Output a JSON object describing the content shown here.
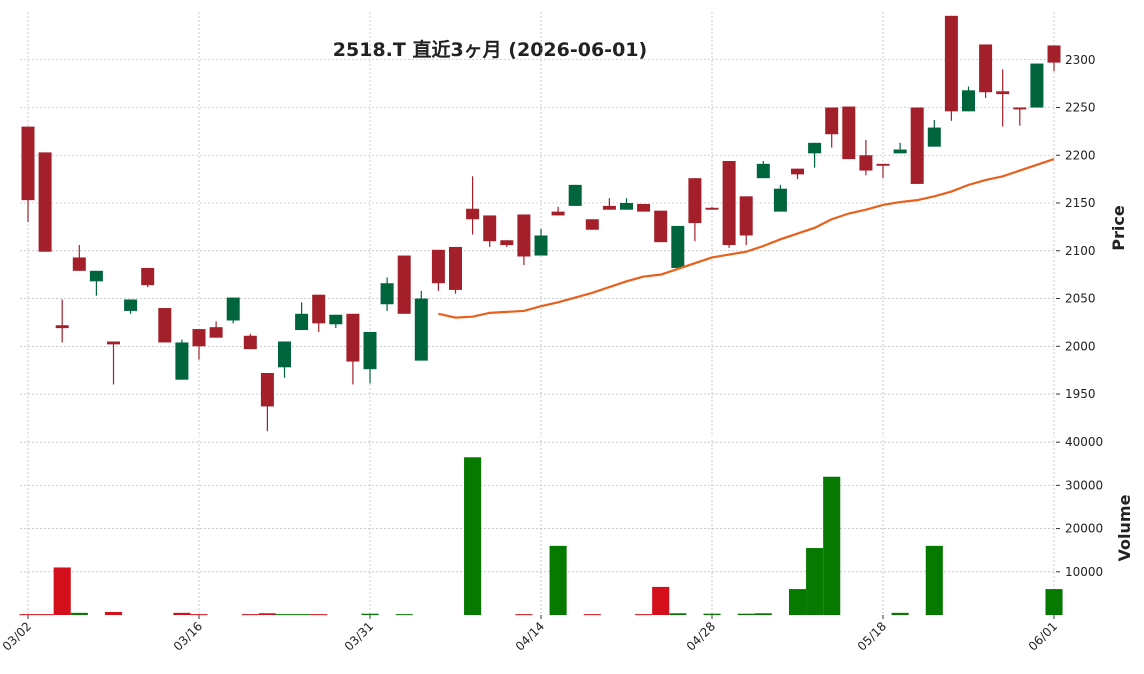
{
  "chart_data": {
    "type": "candlestick",
    "title": "2518.T  直近3ヶ月  (2026-06-01)",
    "categories": [
      "03/02",
      null,
      null,
      null,
      null,
      null,
      null,
      null,
      null,
      null,
      "03/16",
      null,
      null,
      null,
      null,
      null,
      null,
      null,
      null,
      null,
      "03/31",
      null,
      null,
      null,
      null,
      null,
      null,
      null,
      null,
      null,
      "04/14",
      null,
      null,
      null,
      null,
      null,
      null,
      null,
      null,
      null,
      "04/28",
      null,
      null,
      null,
      null,
      null,
      null,
      null,
      null,
      null,
      "05/18",
      null,
      null,
      null,
      null,
      null,
      null,
      null,
      null,
      null,
      "06/01"
    ],
    "open": [
      2230,
      2203,
      2022,
      2093,
      2068,
      2005,
      2037,
      2082,
      2040,
      1965,
      2018,
      2020,
      2027,
      2011,
      1972,
      1978,
      2017,
      2054,
      2023,
      2034,
      1976,
      2044,
      2095,
      1985,
      2101,
      2104,
      2144,
      2137,
      2111,
      2138,
      2095,
      2141,
      2147,
      2133,
      2147,
      2143,
      2149,
      2142,
      2082,
      2176,
      2145,
      2194,
      2157,
      2176,
      2141,
      2186,
      2202,
      2250,
      2251,
      2200,
      2191,
      2202,
      2250,
      2209,
      2346,
      2246,
      2316,
      2267,
      2250,
      2250,
      2315
    ],
    "high": [
      2230,
      2203,
      2049,
      2106,
      2079,
      2005,
      2049,
      2082,
      2040,
      2007,
      2018,
      2026,
      2051,
      2013,
      1972,
      2005,
      2046,
      2054,
      2033,
      2034,
      2015,
      2072,
      2095,
      2058,
      2101,
      2104,
      2178,
      2137,
      2111,
      2138,
      2123,
      2146,
      2169,
      2133,
      2155,
      2155,
      2149,
      2142,
      2126,
      2176,
      2146,
      2194,
      2157,
      2194,
      2169,
      2186,
      2213,
      2250,
      2251,
      2216,
      2191,
      2213,
      2250,
      2237,
      2346,
      2272,
      2316,
      2290,
      2250,
      2296,
      2315
    ],
    "low": [
      2130,
      2099,
      2004,
      2079,
      2053,
      1960,
      2034,
      2062,
      2004,
      1965,
      1986,
      2009,
      2024,
      1997,
      1911,
      1967,
      2017,
      2015,
      2019,
      1960,
      1961,
      2037,
      2034,
      1985,
      2058,
      2055,
      2117,
      2104,
      2104,
      2085,
      2095,
      2137,
      2147,
      2122,
      2143,
      2143,
      2141,
      2109,
      2082,
      2110,
      2143,
      2103,
      2106,
      2176,
      2141,
      2175,
      2187,
      2208,
      2196,
      2179,
      2176,
      2202,
      2170,
      2209,
      2236,
      2246,
      2260,
      2230,
      2231,
      2250,
      2288
    ],
    "close": [
      2153,
      2099,
      2019,
      2079,
      2079,
      2002,
      2049,
      2064,
      2004,
      2004,
      2000,
      2009,
      2051,
      1997,
      1937,
      2005,
      2034,
      2024,
      2033,
      1984,
      2015,
      2066,
      2034,
      2050,
      2066,
      2059,
      2133,
      2110,
      2106,
      2094,
      2116,
      2137,
      2169,
      2122,
      2143,
      2150,
      2141,
      2109,
      2126,
      2129,
      2143,
      2106,
      2116,
      2191,
      2165,
      2180,
      2213,
      2222,
      2196,
      2184,
      2189,
      2206,
      2170,
      2229,
      2246,
      2268,
      2266,
      2264,
      2248,
      2296,
      2297
    ],
    "up_color": "#00643c",
    "down_color": "#a3202b",
    "ma": {
      "color": "#e8601c",
      "values": [
        null,
        null,
        null,
        null,
        null,
        null,
        null,
        null,
        null,
        null,
        null,
        null,
        null,
        null,
        null,
        null,
        null,
        null,
        null,
        null,
        null,
        null,
        null,
        null,
        2034,
        2030,
        2031,
        2035,
        2036,
        2037,
        2042,
        2046,
        2051,
        2056,
        2062,
        2068,
        2073,
        2075,
        2081,
        2087,
        2093,
        2096,
        2099,
        2105,
        2112,
        2118,
        2124,
        2133,
        2139,
        2143,
        2148,
        2151,
        2153,
        2157,
        2162,
        2169,
        2174,
        2178,
        2184,
        2190,
        2196
      ]
    },
    "volume": {
      "values": [
        200,
        200,
        11000,
        500,
        0,
        700,
        0,
        0,
        0,
        500,
        200,
        0,
        0,
        200,
        400,
        200,
        200,
        200,
        0,
        0,
        300,
        0,
        200,
        0,
        0,
        0,
        36500,
        0,
        0,
        200,
        0,
        16000,
        0,
        200,
        0,
        0,
        200,
        6500,
        400,
        0,
        300,
        0,
        300,
        400,
        0,
        6000,
        15500,
        32000,
        0,
        0,
        0,
        500,
        0,
        16000,
        0,
        0,
        0,
        0,
        0,
        0,
        6000
      ],
      "colors": [
        "#d20f1b",
        "#d20f1b",
        "#d20f1b",
        "#067a00",
        "#067a00",
        "#d20f1b",
        "#067a00",
        "#067a00",
        "#067a00",
        "#d20f1b",
        "#d20f1b",
        "#067a00",
        "#067a00",
        "#d20f1b",
        "#d20f1b",
        "#067a00",
        "#067a00",
        "#d20f1b",
        "#067a00",
        "#067a00",
        "#067a00",
        "#067a00",
        "#067a00",
        "#067a00",
        "#067a00",
        "#067a00",
        "#067a00",
        "#067a00",
        "#067a00",
        "#d20f1b",
        "#067a00",
        "#067a00",
        "#067a00",
        "#d20f1b",
        "#067a00",
        "#067a00",
        "#d20f1b",
        "#d20f1b",
        "#067a00",
        "#067a00",
        "#067a00",
        "#067a00",
        "#067a00",
        "#067a00",
        "#067a00",
        "#067a00",
        "#067a00",
        "#067a00",
        "#067a00",
        "#067a00",
        "#067a00",
        "#067a00",
        "#067a00",
        "#067a00",
        "#067a00",
        "#067a00",
        "#067a00",
        "#067a00",
        "#067a00",
        "#067a00",
        "#067a00"
      ]
    },
    "ylim": [
      1905,
      2350
    ],
    "yticks": [
      1950,
      2000,
      2050,
      2100,
      2150,
      2200,
      2250,
      2300
    ],
    "ylabel": "Price",
    "y2lim": [
      0,
      40500
    ],
    "y2ticks": [
      10000,
      20000,
      30000,
      40000
    ],
    "y2label": "Volume",
    "grid": true
  }
}
